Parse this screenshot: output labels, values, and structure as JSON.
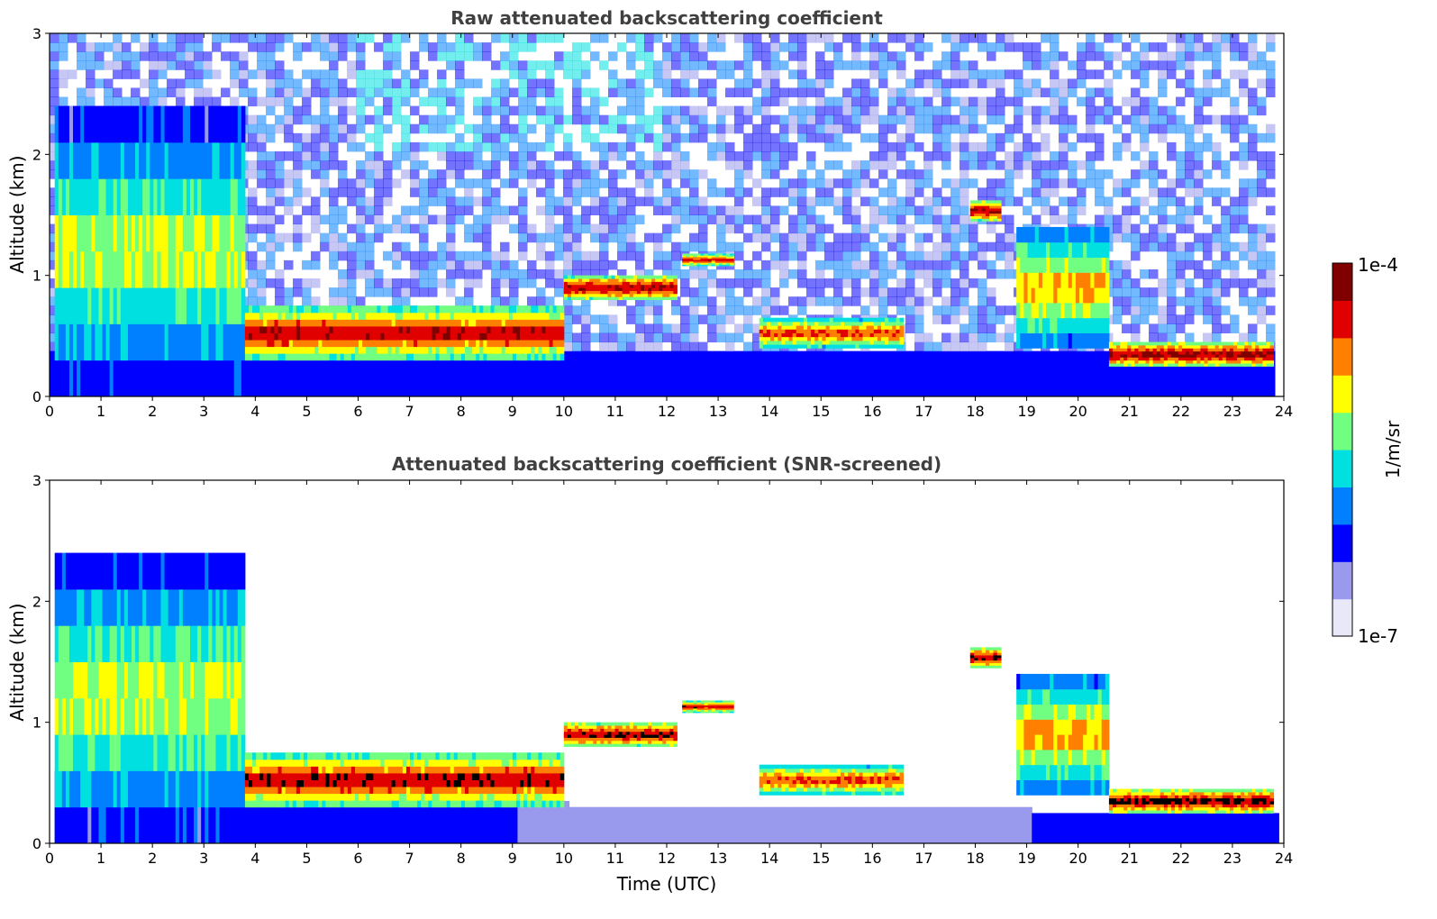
{
  "chart_data": [
    {
      "type": "heatmap",
      "title": "Raw attenuated backscattering coefficient",
      "xlabel": "",
      "ylabel": "Altitude (km)",
      "xlim": [
        0,
        24
      ],
      "ylim": [
        0,
        3
      ],
      "xticks": [
        "0",
        "1",
        "2",
        "3",
        "4",
        "5",
        "6",
        "7",
        "8",
        "9",
        "10",
        "11",
        "12",
        "13",
        "14",
        "15",
        "16",
        "17",
        "18",
        "19",
        "20",
        "21",
        "22",
        "23",
        "24"
      ],
      "yticks": [
        "0",
        "1",
        "2",
        "3"
      ],
      "grid": false,
      "mode": "raw",
      "features": [
        {
          "time": [
            0.1,
            3.8
          ],
          "altitude": [
            0.0,
            2.4
          ],
          "level": 0.65
        },
        {
          "time": [
            3.8,
            10.0
          ],
          "altitude": [
            0.3,
            0.75
          ],
          "level": 0.92
        },
        {
          "time": [
            10.0,
            12.2
          ],
          "altitude": [
            0.8,
            1.0
          ],
          "level": 0.95
        },
        {
          "time": [
            12.3,
            13.3
          ],
          "altitude": [
            1.08,
            1.18
          ],
          "level": 0.9
        },
        {
          "time": [
            13.8,
            16.6
          ],
          "altitude": [
            0.4,
            0.65
          ],
          "level": 0.85
        },
        {
          "time": [
            17.9,
            18.5
          ],
          "altitude": [
            1.45,
            1.62
          ],
          "level": 0.95
        },
        {
          "time": [
            18.8,
            20.6
          ],
          "altitude": [
            0.4,
            1.4
          ],
          "level": 0.75
        },
        {
          "time": [
            20.6,
            23.8
          ],
          "altitude": [
            0.25,
            0.45
          ],
          "level": 0.97
        }
      ]
    },
    {
      "type": "heatmap",
      "title": "Attenuated backscattering coefficient (SNR-screened)",
      "xlabel": "Time (UTC)",
      "ylabel": "Altitude (km)",
      "xlim": [
        0,
        24
      ],
      "ylim": [
        0,
        3
      ],
      "xticks": [
        "0",
        "1",
        "2",
        "3",
        "4",
        "5",
        "6",
        "7",
        "8",
        "9",
        "10",
        "11",
        "12",
        "13",
        "14",
        "15",
        "16",
        "17",
        "18",
        "19",
        "20",
        "21",
        "22",
        "23",
        "24"
      ],
      "yticks": [
        "0",
        "1",
        "2",
        "3"
      ],
      "grid": false,
      "mode": "screened",
      "features": [
        {
          "time": [
            0.1,
            3.8
          ],
          "altitude": [
            0.0,
            2.4
          ],
          "level": 0.65
        },
        {
          "time": [
            3.8,
            10.0
          ],
          "altitude": [
            0.3,
            0.75
          ],
          "level": 0.92
        },
        {
          "time": [
            10.0,
            12.2
          ],
          "altitude": [
            0.8,
            1.0
          ],
          "level": 0.95
        },
        {
          "time": [
            12.3,
            13.3
          ],
          "altitude": [
            1.08,
            1.18
          ],
          "level": 0.9
        },
        {
          "time": [
            13.8,
            16.6
          ],
          "altitude": [
            0.4,
            0.65
          ],
          "level": 0.85
        },
        {
          "time": [
            17.9,
            18.5
          ],
          "altitude": [
            1.45,
            1.62
          ],
          "level": 0.95
        },
        {
          "time": [
            18.8,
            20.6
          ],
          "altitude": [
            0.4,
            1.4
          ],
          "level": 0.75
        },
        {
          "time": [
            20.6,
            23.8
          ],
          "altitude": [
            0.25,
            0.45
          ],
          "level": 0.97
        }
      ]
    }
  ],
  "colorbar": {
    "label": "1/m/sr",
    "max_label": "1e-4",
    "min_label": "1e-7",
    "range": [
      1e-07,
      0.0001
    ],
    "scale": "log",
    "colormap": [
      "#e8e8f8",
      "#9999ee",
      "#0000ff",
      "#0080ff",
      "#00e0e0",
      "#70ff80",
      "#ffff00",
      "#ff8000",
      "#e00000",
      "#800000"
    ]
  }
}
